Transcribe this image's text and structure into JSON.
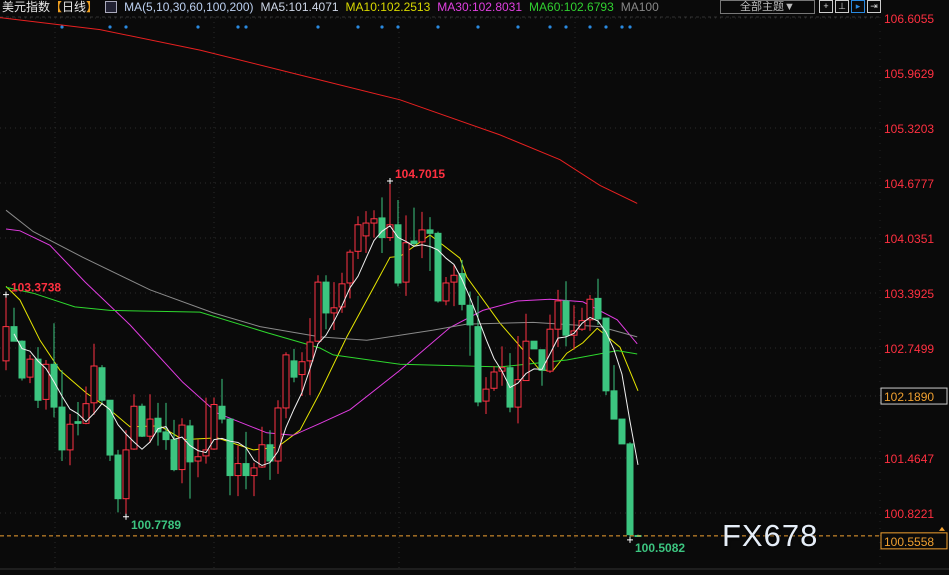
{
  "header": {
    "title": "美元指数",
    "period_open": "【",
    "period": "日线",
    "period_close": "】",
    "ma_params": "MA(5,10,30,60,100,200)",
    "ma5": "MA5:101.4071",
    "ma10": "MA10:102.2513",
    "ma30": "MA30:102.8031",
    "ma60": "MA60:102.6793",
    "ma100": "MA100",
    "theme_dropdown": "全部主题▼",
    "tool_icons": [
      "crosshair-icon",
      "range-icon",
      "play-icon",
      "exit-icon"
    ]
  },
  "watermark": "FX678",
  "colors": {
    "up": "#ff3344",
    "down": "#3cc580",
    "ma5": "#f0f0f0",
    "ma10": "#e6e600",
    "ma30": "#e03ce0",
    "ma60": "#2ed82e",
    "ma100": "#8a8a8a",
    "ma200": "#e82020",
    "event": "#2a8ae0",
    "current": "#f0a030"
  },
  "chart_data": {
    "type": "candlestick",
    "title": "美元指数 日线",
    "ylim": [
      100.45,
      106.62
    ],
    "grid": true,
    "y_ticks": [
      "106.6055",
      "105.9629",
      "105.3203",
      "104.6777",
      "104.0351",
      "103.3925",
      "102.7499",
      "101.4647",
      "100.8221"
    ],
    "highlighted_tick": "102.1890",
    "current_price": "100.5558",
    "annotations": [
      {
        "text": "104.7015",
        "index": 48,
        "value": 104.7015,
        "type": "high"
      },
      {
        "text": "103.3738",
        "index": 0,
        "value": 103.3738,
        "type": "high"
      },
      {
        "text": "100.7789",
        "index": 15,
        "value": 100.7789,
        "type": "low"
      },
      {
        "text": "100.5082",
        "index": 78,
        "value": 100.5082,
        "type": "low"
      }
    ],
    "ohlc": [
      [
        102.6,
        103.3738,
        102.49,
        103.0
      ],
      [
        103.0,
        103.22,
        102.83,
        102.83
      ],
      [
        102.83,
        102.84,
        102.37,
        102.4
      ],
      [
        102.41,
        102.67,
        102.34,
        102.62
      ],
      [
        102.62,
        102.76,
        102.05,
        102.14
      ],
      [
        102.15,
        102.61,
        102.03,
        102.56
      ],
      [
        102.56,
        103.04,
        101.94,
        102.06
      ],
      [
        102.06,
        102.49,
        101.43,
        101.56
      ],
      [
        101.56,
        101.98,
        101.38,
        101.86
      ],
      [
        101.89,
        102.12,
        101.73,
        101.87
      ],
      [
        101.87,
        102.3,
        101.86,
        102.1
      ],
      [
        102.11,
        102.8,
        101.97,
        102.54
      ],
      [
        102.52,
        102.55,
        102.11,
        102.14
      ],
      [
        102.14,
        102.14,
        101.43,
        101.5
      ],
      [
        101.5,
        101.56,
        100.83,
        100.99
      ],
      [
        100.99,
        101.79,
        100.7789,
        101.56
      ],
      [
        101.57,
        102.21,
        101.56,
        102.07
      ],
      [
        102.07,
        102.1,
        101.71,
        101.72
      ],
      [
        101.72,
        102.21,
        101.64,
        101.92
      ],
      [
        101.93,
        102.11,
        101.61,
        101.77
      ],
      [
        101.77,
        102.11,
        101.56,
        101.68
      ],
      [
        101.68,
        101.91,
        101.31,
        101.33
      ],
      [
        101.33,
        101.93,
        101.17,
        101.85
      ],
      [
        101.84,
        101.91,
        100.99,
        101.42
      ],
      [
        101.43,
        101.68,
        101.24,
        101.48
      ],
      [
        101.49,
        102.17,
        101.4,
        101.56
      ],
      [
        101.57,
        102.17,
        101.56,
        102.09
      ],
      [
        102.07,
        102.39,
        101.87,
        101.92
      ],
      [
        101.92,
        101.92,
        101.03,
        101.26
      ],
      [
        101.26,
        101.61,
        101.02,
        101.4
      ],
      [
        101.4,
        101.77,
        101.1,
        101.26
      ],
      [
        101.26,
        101.41,
        101.02,
        101.35
      ],
      [
        101.36,
        101.83,
        101.35,
        101.62
      ],
      [
        101.62,
        101.79,
        101.21,
        101.43
      ],
      [
        101.43,
        102.14,
        101.28,
        102.05
      ],
      [
        102.05,
        102.7,
        101.93,
        102.67
      ],
      [
        102.6,
        102.74,
        102.35,
        102.41
      ],
      [
        102.44,
        102.7,
        102.19,
        102.59
      ],
      [
        102.6,
        103.1,
        102.2,
        102.82
      ],
      [
        102.83,
        103.6,
        102.82,
        103.52
      ],
      [
        103.52,
        103.6,
        102.97,
        103.16
      ],
      [
        103.16,
        103.52,
        102.96,
        103.22
      ],
      [
        103.23,
        103.63,
        103.16,
        103.5
      ],
      [
        103.51,
        103.9,
        103.33,
        103.87
      ],
      [
        103.88,
        104.29,
        103.79,
        104.19
      ],
      [
        104.06,
        104.35,
        103.86,
        104.21
      ],
      [
        104.21,
        104.36,
        104.04,
        104.26
      ],
      [
        104.27,
        104.51,
        103.86,
        104.04
      ],
      [
        104.04,
        104.7015,
        104.0,
        104.19
      ],
      [
        104.19,
        104.48,
        103.47,
        103.51
      ],
      [
        103.52,
        104.3,
        103.36,
        103.98
      ],
      [
        104.0,
        104.39,
        103.93,
        103.97
      ],
      [
        103.99,
        104.34,
        103.8,
        104.13
      ],
      [
        104.13,
        104.28,
        103.65,
        104.09
      ],
      [
        104.09,
        104.11,
        103.28,
        103.3
      ],
      [
        103.3,
        103.58,
        103.25,
        103.51
      ],
      [
        103.52,
        103.72,
        103.24,
        103.6
      ],
      [
        103.62,
        103.78,
        103.19,
        103.26
      ],
      [
        103.25,
        103.41,
        102.66,
        103.02
      ],
      [
        103.0,
        103.36,
        102.07,
        102.12
      ],
      [
        102.13,
        102.41,
        101.98,
        102.27
      ],
      [
        102.28,
        102.54,
        102.25,
        102.47
      ],
      [
        102.48,
        102.77,
        102.31,
        102.52
      ],
      [
        102.52,
        102.69,
        102.0,
        102.06
      ],
      [
        102.06,
        102.89,
        101.87,
        102.38
      ],
      [
        102.37,
        103.15,
        102.37,
        102.83
      ],
      [
        102.83,
        102.83,
        102.74,
        102.74
      ],
      [
        102.73,
        102.73,
        102.31,
        102.49
      ],
      [
        102.48,
        103.14,
        102.46,
        102.97
      ],
      [
        102.97,
        103.43,
        102.76,
        103.3
      ],
      [
        103.3,
        103.53,
        102.77,
        102.9
      ],
      [
        102.9,
        103.25,
        102.73,
        102.95
      ],
      [
        102.97,
        103.22,
        102.95,
        103.07
      ],
      [
        103.08,
        103.37,
        102.95,
        103.32
      ],
      [
        103.33,
        103.56,
        103.02,
        103.09
      ],
      [
        103.1,
        103.1,
        102.2,
        102.25
      ],
      [
        102.25,
        102.55,
        101.92,
        101.92
      ],
      [
        101.92,
        101.92,
        101.63,
        101.63
      ],
      [
        101.63,
        101.65,
        100.5082,
        100.57
      ],
      [
        100.56,
        100.57,
        100.55,
        100.5558
      ]
    ],
    "ma_lines": {
      "MA10": [
        [
          0,
          103.47
        ],
        [
          1.75,
          103.31
        ],
        [
          4.25,
          102.84
        ],
        [
          6.75,
          102.49
        ],
        [
          10.1,
          102.22
        ],
        [
          12.6,
          102.06
        ],
        [
          15.5,
          101.83
        ],
        [
          19.25,
          101.84
        ],
        [
          22.1,
          101.68
        ],
        [
          26.4,
          101.7
        ],
        [
          30.9,
          101.56
        ],
        [
          33.9,
          101.59
        ],
        [
          36.75,
          101.79
        ],
        [
          39.25,
          102.23
        ],
        [
          42.6,
          102.88
        ],
        [
          48,
          103.81
        ],
        [
          49.25,
          103.82
        ],
        [
          53,
          104.07
        ],
        [
          56.75,
          103.8
        ],
        [
          57.6,
          103.58
        ],
        [
          61.75,
          103.04
        ],
        [
          63.9,
          102.81
        ],
        [
          66.75,
          102.49
        ],
        [
          68.4,
          102.49
        ],
        [
          70.1,
          102.69
        ],
        [
          72.1,
          102.81
        ],
        [
          73.9,
          102.98
        ],
        [
          76.75,
          102.76
        ],
        [
          79,
          102.25
        ]
      ],
      "MA30": [
        [
          0,
          104.14
        ],
        [
          1.75,
          104.12
        ],
        [
          5.5,
          103.95
        ],
        [
          9.9,
          103.52
        ],
        [
          15.5,
          103.02
        ],
        [
          22.1,
          102.35
        ],
        [
          26.4,
          101.99
        ],
        [
          32.6,
          101.76
        ],
        [
          35.9,
          101.73
        ],
        [
          39.25,
          101.87
        ],
        [
          43,
          102.03
        ],
        [
          49.25,
          102.49
        ],
        [
          55.5,
          102.99
        ],
        [
          59.6,
          103.19
        ],
        [
          63.9,
          103.3
        ],
        [
          68,
          103.32
        ],
        [
          72.1,
          103.29
        ],
        [
          76.4,
          103.08
        ],
        [
          78.9,
          102.8
        ]
      ],
      "MA60": [
        [
          0,
          103.46
        ],
        [
          3.4,
          103.39
        ],
        [
          8.6,
          103.23
        ],
        [
          13,
          103.19
        ],
        [
          24.25,
          103.17
        ],
        [
          32.6,
          102.93
        ],
        [
          39.25,
          102.75
        ],
        [
          40.9,
          102.67
        ],
        [
          49.25,
          102.56
        ],
        [
          61.75,
          102.53
        ],
        [
          70.1,
          102.61
        ],
        [
          76.4,
          102.72
        ],
        [
          78.9,
          102.68
        ]
      ],
      "MA100": [
        [
          0,
          104.36
        ],
        [
          3.4,
          104.11
        ],
        [
          9.6,
          103.81
        ],
        [
          18,
          103.43
        ],
        [
          25.9,
          103.16
        ],
        [
          31.75,
          103.0
        ],
        [
          39.25,
          102.88
        ],
        [
          45.1,
          102.84
        ],
        [
          53.4,
          102.96
        ],
        [
          57.6,
          103.03
        ],
        [
          65.9,
          103.05
        ],
        [
          74.25,
          103.0
        ],
        [
          78.9,
          102.88
        ]
      ],
      "MA200": [
        [
          -0.75,
          106.61
        ],
        [
          11.75,
          106.47
        ],
        [
          24.25,
          106.23
        ],
        [
          36.75,
          105.94
        ],
        [
          49.25,
          105.65
        ],
        [
          61.75,
          105.24
        ],
        [
          69.25,
          104.95
        ],
        [
          74.25,
          104.65
        ],
        [
          78.9,
          104.44
        ]
      ]
    },
    "event_markers": [
      7,
      13,
      15,
      24,
      29,
      30,
      39,
      44,
      47,
      49,
      54,
      59,
      64,
      68,
      70,
      73,
      75,
      77,
      78
    ]
  }
}
